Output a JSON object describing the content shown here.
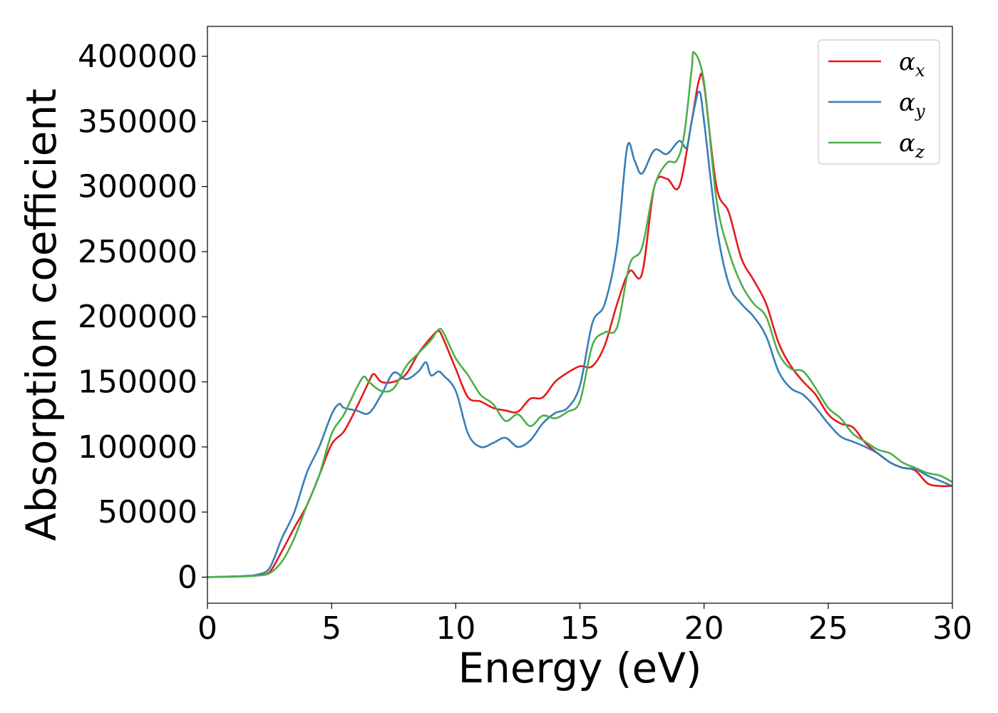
{
  "chart_data": {
    "type": "line",
    "title": "",
    "xlabel": "Energy (eV)",
    "ylabel": "Absorption coefficient",
    "xlim": [
      0,
      30
    ],
    "ylim": [
      -20000,
      423000
    ],
    "xticks": [
      0,
      5,
      10,
      15,
      20,
      25,
      30
    ],
    "yticks": [
      0,
      50000,
      100000,
      150000,
      200000,
      250000,
      300000,
      350000,
      400000
    ],
    "grid": false,
    "legend_position": "top-right",
    "series": [
      {
        "name": "α_x",
        "symbol": "α",
        "subscript": "x",
        "color": "#e41a1c",
        "x": [
          0,
          1,
          1.5,
          2,
          2.5,
          3,
          3.5,
          4,
          4.5,
          5,
          5.5,
          6,
          6.5,
          6.7,
          7,
          7.5,
          8,
          8.5,
          9,
          9.3,
          9.5,
          10,
          10.5,
          11,
          11.5,
          12,
          12.5,
          13,
          13.5,
          14,
          14.5,
          15,
          15.5,
          16,
          16.5,
          17,
          17.5,
          18,
          18.5,
          19,
          19.5,
          19.8,
          20,
          20.5,
          21,
          21.5,
          22,
          22.5,
          23,
          23.5,
          24,
          24.5,
          25,
          25.5,
          26,
          26.5,
          27,
          27.5,
          28,
          28.5,
          29,
          29.5,
          30
        ],
        "values": [
          0,
          500,
          800,
          1500,
          4000,
          20000,
          38000,
          55000,
          78000,
          102000,
          112000,
          130000,
          150000,
          156000,
          150000,
          150000,
          156000,
          172000,
          184000,
          189000,
          183000,
          160000,
          138000,
          135000,
          130000,
          128000,
          127000,
          137000,
          138000,
          150000,
          157000,
          162000,
          162000,
          178000,
          210000,
          235000,
          233000,
          300000,
          306000,
          300000,
          350000,
          382000,
          378000,
          300000,
          280000,
          245000,
          228000,
          210000,
          180000,
          162000,
          150000,
          140000,
          125000,
          118000,
          115000,
          103000,
          95000,
          88000,
          84000,
          82000,
          72000,
          70000,
          70000
        ]
      },
      {
        "name": "α_y",
        "symbol": "α",
        "subscript": "y",
        "color": "#377eb8",
        "x": [
          0,
          1,
          1.5,
          2,
          2.5,
          3,
          3.5,
          4,
          4.5,
          5,
          5.3,
          5.5,
          6,
          6.5,
          7,
          7.5,
          8,
          8.5,
          8.8,
          9,
          9.3,
          9.5,
          10,
          10.5,
          11,
          11.5,
          12,
          12.5,
          13,
          13.5,
          14,
          14.5,
          15,
          15.5,
          16,
          16.5,
          16.9,
          17.2,
          17.5,
          18,
          18.5,
          19,
          19.3,
          19.5,
          19.8,
          20,
          20.5,
          21,
          21.5,
          22,
          22.5,
          23,
          23.5,
          24,
          24.5,
          25,
          25.5,
          26,
          26.5,
          27,
          27.5,
          28,
          28.5,
          29,
          29.5,
          30
        ],
        "values": [
          0,
          500,
          900,
          2000,
          7000,
          30000,
          50000,
          80000,
          100000,
          125000,
          133000,
          130000,
          128000,
          126000,
          140000,
          157000,
          152000,
          158000,
          165000,
          155000,
          158000,
          155000,
          143000,
          110000,
          100000,
          103000,
          107000,
          100000,
          105000,
          118000,
          126000,
          130000,
          147000,
          195000,
          210000,
          255000,
          330000,
          320000,
          310000,
          328000,
          325000,
          335000,
          330000,
          350000,
          373000,
          350000,
          270000,
          225000,
          210000,
          200000,
          185000,
          158000,
          145000,
          140000,
          130000,
          118000,
          108000,
          104000,
          100000,
          95000,
          88000,
          84000,
          83000,
          78000,
          74000,
          70000
        ]
      },
      {
        "name": "α_z",
        "symbol": "α",
        "subscript": "z",
        "color": "#4daf4a",
        "x": [
          0,
          1,
          1.5,
          2,
          2.5,
          3,
          3.5,
          4,
          4.5,
          5,
          5.5,
          6,
          6.3,
          6.5,
          7,
          7.5,
          8,
          8.5,
          9,
          9.3,
          9.5,
          10,
          10.5,
          11,
          11.5,
          12,
          12.5,
          13,
          13.5,
          14,
          14.5,
          15,
          15.5,
          16,
          16.5,
          17,
          17.5,
          18,
          18.5,
          18.9,
          19.2,
          19.5,
          19.6,
          20,
          20.5,
          21,
          21.5,
          22,
          22.5,
          23,
          23.5,
          24,
          24.5,
          25,
          25.5,
          26,
          26.5,
          27,
          27.5,
          28,
          28.5,
          29,
          29.5,
          30
        ],
        "values": [
          0,
          300,
          600,
          1200,
          3000,
          12000,
          30000,
          55000,
          78000,
          110000,
          125000,
          145000,
          154000,
          150000,
          143000,
          145000,
          162000,
          172000,
          182000,
          190000,
          188000,
          168000,
          155000,
          140000,
          133000,
          120000,
          125000,
          116000,
          124000,
          122000,
          127000,
          135000,
          178000,
          188000,
          192000,
          240000,
          253000,
          300000,
          318000,
          320000,
          340000,
          390000,
          403000,
          380000,
          290000,
          250000,
          225000,
          210000,
          200000,
          172000,
          160000,
          158000,
          145000,
          130000,
          122000,
          110000,
          104000,
          98000,
          95000,
          88000,
          84000,
          80000,
          78000,
          73000
        ]
      }
    ]
  }
}
